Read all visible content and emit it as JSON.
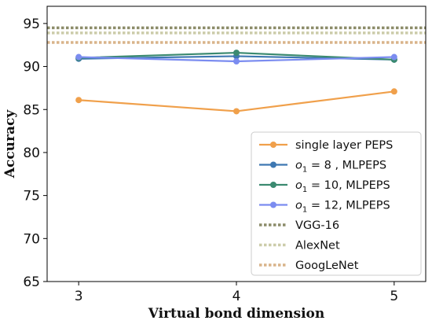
{
  "chart_data": {
    "type": "line",
    "xlabel": "Virtual bond dimension",
    "ylabel": "Accuracy",
    "x": [
      3,
      4,
      5
    ],
    "xlim": [
      2.8,
      5.2
    ],
    "ylim": [
      65,
      97
    ],
    "xticks": [
      "3",
      "4",
      "5"
    ],
    "yticks": [
      "65",
      "70",
      "75",
      "80",
      "85",
      "90",
      "95"
    ],
    "grid": false,
    "legend_position": "lower-right",
    "series": [
      {
        "name": "single layer PEPS",
        "label_main": "single layer PEPS",
        "label_sub": "",
        "label_rest": "",
        "color": "#f0a04b",
        "values": [
          86.1,
          84.8,
          87.1
        ],
        "style": "solid"
      },
      {
        "name": "o1 = 8 , MLPEPS",
        "label_main": "o",
        "label_sub": "1",
        "label_rest": " = 8  , MLPEPS",
        "color": "#3e78b2",
        "values": [
          90.9,
          91.2,
          90.8
        ],
        "style": "solid"
      },
      {
        "name": "o1 = 10, MLPEPS",
        "label_main": "o",
        "label_sub": "1",
        "label_rest": " = 10, MLPEPS",
        "color": "#3b8a70",
        "values": [
          91.0,
          91.6,
          90.8
        ],
        "style": "solid"
      },
      {
        "name": "o1 = 12, MLPEPS",
        "label_main": "o",
        "label_sub": "1",
        "label_rest": " = 12, MLPEPS",
        "color": "#7b8cf0",
        "values": [
          91.1,
          90.6,
          91.1
        ],
        "style": "solid"
      }
    ],
    "reference_lines": [
      {
        "name": "VGG-16",
        "value": 94.5,
        "color": "#8c8c6a"
      },
      {
        "name": "AlexNet",
        "value": 93.9,
        "color": "#ccccaa"
      },
      {
        "name": "GoogLeNet",
        "value": 92.8,
        "color": "#d9b48a"
      }
    ]
  }
}
